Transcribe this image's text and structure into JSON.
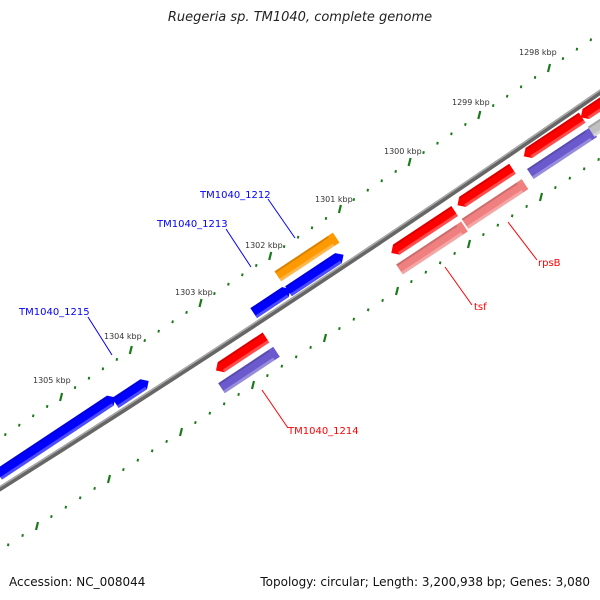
{
  "title": "Ruegeria sp. TM1040, complete genome",
  "footer": {
    "accession": "Accession: NC_008044",
    "topology": "Topology: circular; Length: 3,200,938 bp; Genes: 3,080"
  },
  "scale_labels": [
    "1298 kbp",
    "1299 kbp",
    "1300 kbp",
    "1301 kbp",
    "1302 kbp",
    "1303 kbp",
    "1304 kbp",
    "1305 kbp"
  ],
  "gene_labels": [
    {
      "text": "TM1040_1212",
      "color": "#0000ff"
    },
    {
      "text": "TM1040_1213",
      "color": "#0000ff"
    },
    {
      "text": "TM1040_1215",
      "color": "#0000ff"
    },
    {
      "text": "TM1040_1214",
      "color": "#ff0000"
    },
    {
      "text": "tsf",
      "color": "#ff0000"
    },
    {
      "text": "rpsB",
      "color": "#ff0000"
    }
  ],
  "colors": {
    "forward": "#0000ff",
    "reverse": "#ff0000",
    "rna": "#ff9900",
    "product_blue": "#6a5acd",
    "product_pink": "#f08080",
    "backbone": "#808080",
    "ticks": "#1a7a1a"
  }
}
